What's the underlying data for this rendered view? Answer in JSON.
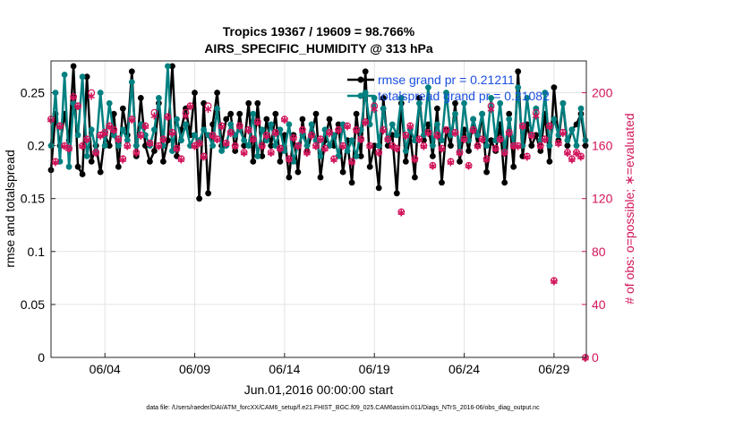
{
  "chart_data": {
    "type": "line",
    "title": "Tropics 19367 / 19609 = 98.766%",
    "subtitle": "AIRS_SPECIFIC_HUMIDITY @ 313 hPa",
    "xlabel": "Jun.01,2016 00:00:00 start",
    "ylabel_left": "rmse and totalspread",
    "ylabel_right": "# of obs: o=possible; ∗=evaluated",
    "footnote": "data file: /Users/raeder/DAI/ATM_forcXX/CAM6_setup/f.e21.FHIST_BGC.f09_025.CAM6assim.011/Diags_NTrS_2016-06/obs_diag_output.nc",
    "xlim": [
      1.0,
      30.8
    ],
    "ylim_left": [
      0,
      0.28
    ],
    "ylim_right": [
      0,
      224
    ],
    "x_ticks": [
      4,
      9,
      14,
      19,
      24,
      29
    ],
    "x_tick_labels": [
      "06/04",
      "06/09",
      "06/14",
      "06/19",
      "06/24",
      "06/29"
    ],
    "y_ticks_left": [
      0,
      0.05,
      0.1,
      0.15,
      0.2,
      0.25
    ],
    "y_tick_labels_left": [
      "0",
      "0.05",
      "0.1",
      "0.15",
      "0.2",
      "0.25"
    ],
    "y_ticks_right": [
      0,
      40,
      80,
      120,
      160,
      200
    ],
    "y_tick_labels_right": [
      "0",
      "40",
      "80",
      "120",
      "160",
      "200"
    ],
    "grid": true,
    "legend_position": "top-right",
    "x": [
      1.0,
      1.25,
      1.5,
      1.75,
      2.0,
      2.25,
      2.5,
      2.75,
      3.0,
      3.25,
      3.5,
      3.75,
      4.0,
      4.25,
      4.5,
      4.75,
      5.0,
      5.25,
      5.5,
      5.75,
      6.0,
      6.25,
      6.5,
      6.75,
      7.0,
      7.25,
      7.5,
      7.75,
      8.0,
      8.25,
      8.5,
      8.75,
      9.0,
      9.25,
      9.5,
      9.75,
      10.0,
      10.25,
      10.5,
      10.75,
      11.0,
      11.25,
      11.5,
      11.75,
      12.0,
      12.25,
      12.5,
      12.75,
      13.0,
      13.25,
      13.5,
      13.75,
      14.0,
      14.25,
      14.5,
      14.75,
      15.0,
      15.25,
      15.5,
      15.75,
      16.0,
      16.25,
      16.5,
      16.75,
      17.0,
      17.25,
      17.5,
      17.75,
      18.0,
      18.25,
      18.5,
      18.75,
      19.0,
      19.25,
      19.5,
      19.75,
      20.0,
      20.25,
      20.5,
      20.75,
      21.0,
      21.25,
      21.5,
      21.75,
      22.0,
      22.25,
      22.5,
      22.75,
      23.0,
      23.25,
      23.5,
      23.75,
      24.0,
      24.25,
      24.5,
      24.75,
      25.0,
      25.25,
      25.5,
      25.75,
      26.0,
      26.25,
      26.5,
      26.75,
      27.0,
      27.25,
      27.5,
      27.75,
      28.0,
      28.25,
      28.5,
      28.75,
      29.0,
      29.25,
      29.5,
      29.75,
      30.0,
      30.25,
      30.5,
      30.75
    ],
    "series": [
      {
        "name": "rmse",
        "legend_label": "rmse grand pr = 0.21211",
        "color": "#000000",
        "axis": "left",
        "values": [
          0.177,
          0.23,
          0.2,
          0.23,
          0.205,
          0.275,
          0.18,
          0.173,
          0.265,
          0.185,
          0.2,
          0.175,
          0.21,
          0.2,
          0.23,
          0.18,
          0.235,
          0.21,
          0.27,
          0.19,
          0.245,
          0.2,
          0.185,
          0.195,
          0.24,
          0.185,
          0.205,
          0.275,
          0.19,
          0.215,
          0.235,
          0.21,
          0.25,
          0.15,
          0.24,
          0.155,
          0.22,
          0.25,
          0.2,
          0.225,
          0.23,
          0.195,
          0.23,
          0.2,
          0.24,
          0.185,
          0.24,
          0.19,
          0.225,
          0.2,
          0.23,
          0.185,
          0.21,
          0.17,
          0.21,
          0.175,
          0.225,
          0.195,
          0.21,
          0.23,
          0.17,
          0.205,
          0.225,
          0.2,
          0.22,
          0.175,
          0.205,
          0.165,
          0.23,
          0.19,
          0.27,
          0.18,
          0.2,
          0.16,
          0.245,
          0.2,
          0.21,
          0.155,
          0.24,
          0.185,
          0.21,
          0.17,
          0.245,
          0.205,
          0.22,
          0.19,
          0.235,
          0.165,
          0.215,
          0.2,
          0.24,
          0.185,
          0.215,
          0.195,
          0.225,
          0.2,
          0.23,
          0.175,
          0.205,
          0.195,
          0.22,
          0.165,
          0.23,
          0.18,
          0.27,
          0.19,
          0.22,
          0.2,
          0.21,
          0.195,
          0.23,
          0.185,
          0.255,
          0.205,
          0.24,
          0.2,
          0.215,
          0.22,
          0.23,
          0.2
        ]
      },
      {
        "name": "totalspread",
        "legend_label": "totalspread grand pr = 0.21082",
        "color": "#008080",
        "axis": "left",
        "values": [
          0.2,
          0.25,
          0.185,
          0.267,
          0.18,
          0.24,
          0.21,
          0.265,
          0.19,
          0.215,
          0.195,
          0.25,
          0.2,
          0.24,
          0.21,
          0.2,
          0.215,
          0.205,
          0.26,
          0.2,
          0.22,
          0.21,
          0.2,
          0.215,
          0.245,
          0.2,
          0.275,
          0.195,
          0.225,
          0.205,
          0.22,
          0.2,
          0.21,
          0.205,
          0.215,
          0.21,
          0.2,
          0.235,
          0.195,
          0.2,
          0.22,
          0.21,
          0.215,
          0.205,
          0.2,
          0.23,
          0.19,
          0.215,
          0.205,
          0.22,
          0.2,
          0.215,
          0.195,
          0.22,
          0.185,
          0.2,
          0.21,
          0.2,
          0.22,
          0.205,
          0.19,
          0.215,
          0.2,
          0.21,
          0.19,
          0.22,
          0.195,
          0.205,
          0.19,
          0.215,
          0.25,
          0.22,
          0.245,
          0.2,
          0.235,
          0.205,
          0.22,
          0.21,
          0.245,
          0.195,
          0.215,
          0.205,
          0.24,
          0.21,
          0.255,
          0.2,
          0.22,
          0.205,
          0.25,
          0.21,
          0.23,
          0.195,
          0.24,
          0.205,
          0.225,
          0.21,
          0.23,
          0.2,
          0.245,
          0.205,
          0.24,
          0.195,
          0.225,
          0.2,
          0.255,
          0.2,
          0.245,
          0.21,
          0.235,
          0.205,
          0.25,
          0.2,
          0.225,
          0.21,
          0.24,
          0.205,
          0.215,
          0.2,
          0.235,
          0.205
        ]
      },
      {
        "name": "# obs possible",
        "marker": "o",
        "color": "#d2145a",
        "axis": "right",
        "values": [
          180,
          148,
          175,
          160,
          158,
          197,
          190,
          160,
          165,
          200,
          155,
          168,
          170,
          175,
          172,
          165,
          150,
          160,
          180,
          155,
          168,
          175,
          162,
          185,
          160,
          165,
          182,
          170,
          158,
          150,
          185,
          190,
          160,
          162,
          152,
          190,
          168,
          165,
          175,
          162,
          170,
          160,
          175,
          155,
          172,
          165,
          178,
          160,
          168,
          155,
          170,
          158,
          180,
          150,
          166,
          160,
          172,
          155,
          168,
          160,
          165,
          158,
          170,
          150,
          172,
          160,
          175,
          148,
          172,
          165,
          178,
          160,
          190,
          155,
          172,
          165,
          160,
          158,
          110,
          168,
          175,
          150,
          165,
          160,
          170,
          145,
          168,
          158,
          172,
          148,
          170,
          155,
          165,
          145,
          172,
          160,
          165,
          150,
          190,
          158,
          165,
          155,
          170,
          160,
          160,
          175,
          152,
          168,
          185,
          160,
          165,
          175,
          58,
          162,
          170,
          155,
          150,
          155,
          152,
          0
        ]
      },
      {
        "name": "# obs evaluated",
        "marker": "*",
        "color": "#d2145a",
        "axis": "right",
        "values": [
          180,
          148,
          175,
          160,
          158,
          197,
          190,
          160,
          165,
          198,
          155,
          168,
          170,
          175,
          172,
          165,
          150,
          160,
          180,
          155,
          168,
          175,
          162,
          183,
          160,
          165,
          182,
          170,
          158,
          150,
          183,
          190,
          160,
          162,
          152,
          188,
          168,
          165,
          175,
          162,
          170,
          160,
          175,
          155,
          172,
          165,
          178,
          160,
          168,
          155,
          170,
          158,
          180,
          150,
          166,
          160,
          172,
          155,
          168,
          160,
          165,
          158,
          170,
          150,
          172,
          160,
          175,
          148,
          172,
          165,
          178,
          160,
          188,
          155,
          172,
          165,
          160,
          158,
          110,
          168,
          175,
          150,
          165,
          160,
          170,
          145,
          168,
          158,
          172,
          148,
          170,
          155,
          165,
          145,
          172,
          160,
          165,
          150,
          188,
          158,
          165,
          155,
          170,
          160,
          160,
          175,
          152,
          168,
          183,
          160,
          165,
          175,
          58,
          162,
          170,
          155,
          150,
          155,
          152,
          0
        ]
      }
    ]
  }
}
